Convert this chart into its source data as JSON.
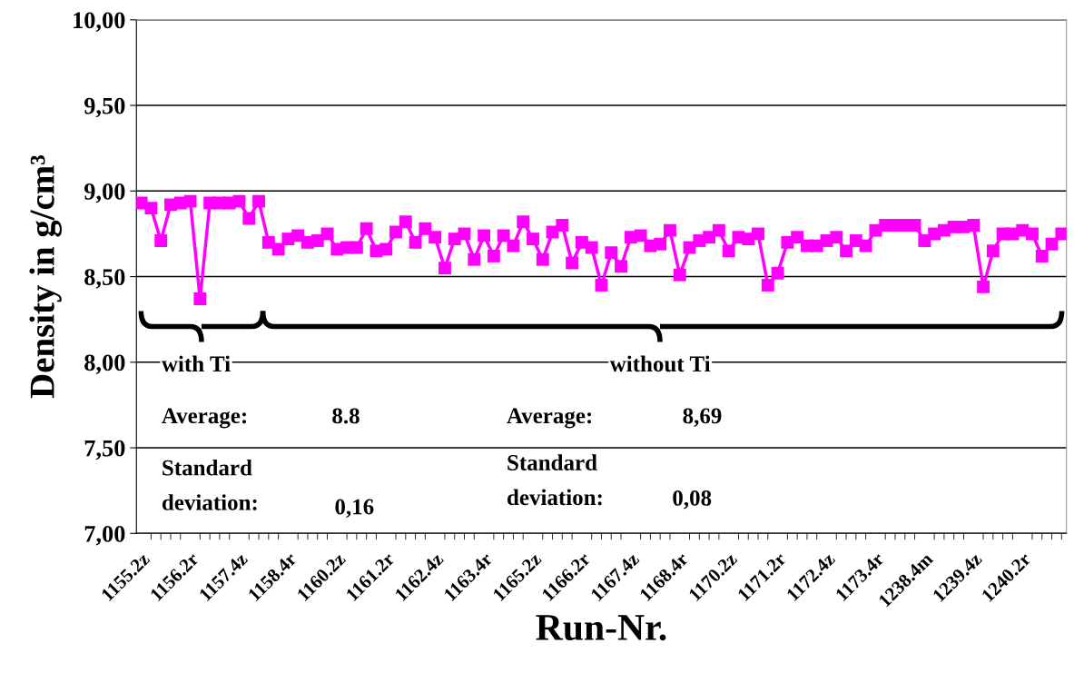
{
  "chart_data": {
    "type": "line",
    "xlabel": "Run-Nr.",
    "ylabel": "Density in g/cm³",
    "categories": [
      "1155.2z",
      null,
      null,
      null,
      null,
      "1156.2r",
      null,
      null,
      null,
      null,
      "1157.4z",
      null,
      null,
      null,
      null,
      "1158.4r",
      null,
      null,
      null,
      null,
      "1160.2z",
      null,
      null,
      null,
      null,
      "1161.2r",
      null,
      null,
      null,
      null,
      "1162.4z",
      null,
      null,
      null,
      null,
      "1163.4r",
      null,
      null,
      null,
      null,
      "1165.2z",
      null,
      null,
      null,
      null,
      "1166.2r",
      null,
      null,
      null,
      null,
      "1167.4z",
      null,
      null,
      null,
      null,
      "1168.4r",
      null,
      null,
      null,
      null,
      "1170.2z",
      null,
      null,
      null,
      null,
      "1171.2r",
      null,
      null,
      null,
      null,
      "1172.4z",
      null,
      null,
      null,
      null,
      "1173.4r",
      null,
      null,
      null,
      null,
      "1238.4m",
      null,
      null,
      null,
      null,
      "1239.4z",
      null,
      null,
      null,
      null,
      "1240.2r",
      null,
      null,
      null,
      null
    ],
    "series": [
      {
        "color": "#ff00ff",
        "values": [
          8.93,
          8.9,
          8.71,
          8.92,
          8.93,
          8.94,
          8.37,
          8.93,
          8.93,
          8.93,
          8.94,
          8.84,
          8.94,
          8.7,
          8.66,
          8.72,
          8.74,
          8.7,
          8.71,
          8.75,
          8.66,
          8.67,
          8.67,
          8.78,
          8.65,
          8.66,
          8.76,
          8.82,
          8.7,
          8.78,
          8.73,
          8.55,
          8.72,
          8.75,
          8.6,
          8.74,
          8.62,
          8.74,
          8.68,
          8.82,
          8.72,
          8.6,
          8.76,
          8.8,
          8.58,
          8.7,
          8.67,
          8.45,
          8.64,
          8.56,
          8.73,
          8.74,
          8.68,
          8.69,
          8.77,
          8.51,
          8.67,
          8.71,
          8.73,
          8.77,
          8.65,
          8.73,
          8.72,
          8.75,
          8.45,
          8.52,
          8.7,
          8.73,
          8.68,
          8.68,
          8.71,
          8.73,
          8.65,
          8.71,
          8.68,
          8.77,
          8.8,
          8.8,
          8.8,
          8.8,
          8.71,
          8.75,
          8.77,
          8.79,
          8.79,
          8.8,
          8.44,
          8.65,
          8.75,
          8.75,
          8.77,
          8.75,
          8.62,
          8.69,
          8.75
        ]
      }
    ],
    "ylim": [
      7,
      10
    ],
    "yticks": [
      {
        "value": 7,
        "label": "7,00"
      },
      {
        "value": 7.5,
        "label": "7,50"
      },
      {
        "value": 8,
        "label": "8,00"
      },
      {
        "value": 8.5,
        "label": "8,50"
      },
      {
        "value": 9,
        "label": "9,00"
      },
      {
        "value": 9.5,
        "label": "9,50"
      },
      {
        "value": 10,
        "label": "10,00"
      }
    ],
    "grid": "y",
    "legend": false,
    "marker": "square",
    "line_style": "solid",
    "annotations": [
      "with Ti",
      "without Ti",
      "Average:",
      "8.8",
      "Standard\ndeviation:",
      "0,16",
      "Average:",
      "8,69",
      "Standard\ndeviation:",
      "0,08"
    ]
  }
}
